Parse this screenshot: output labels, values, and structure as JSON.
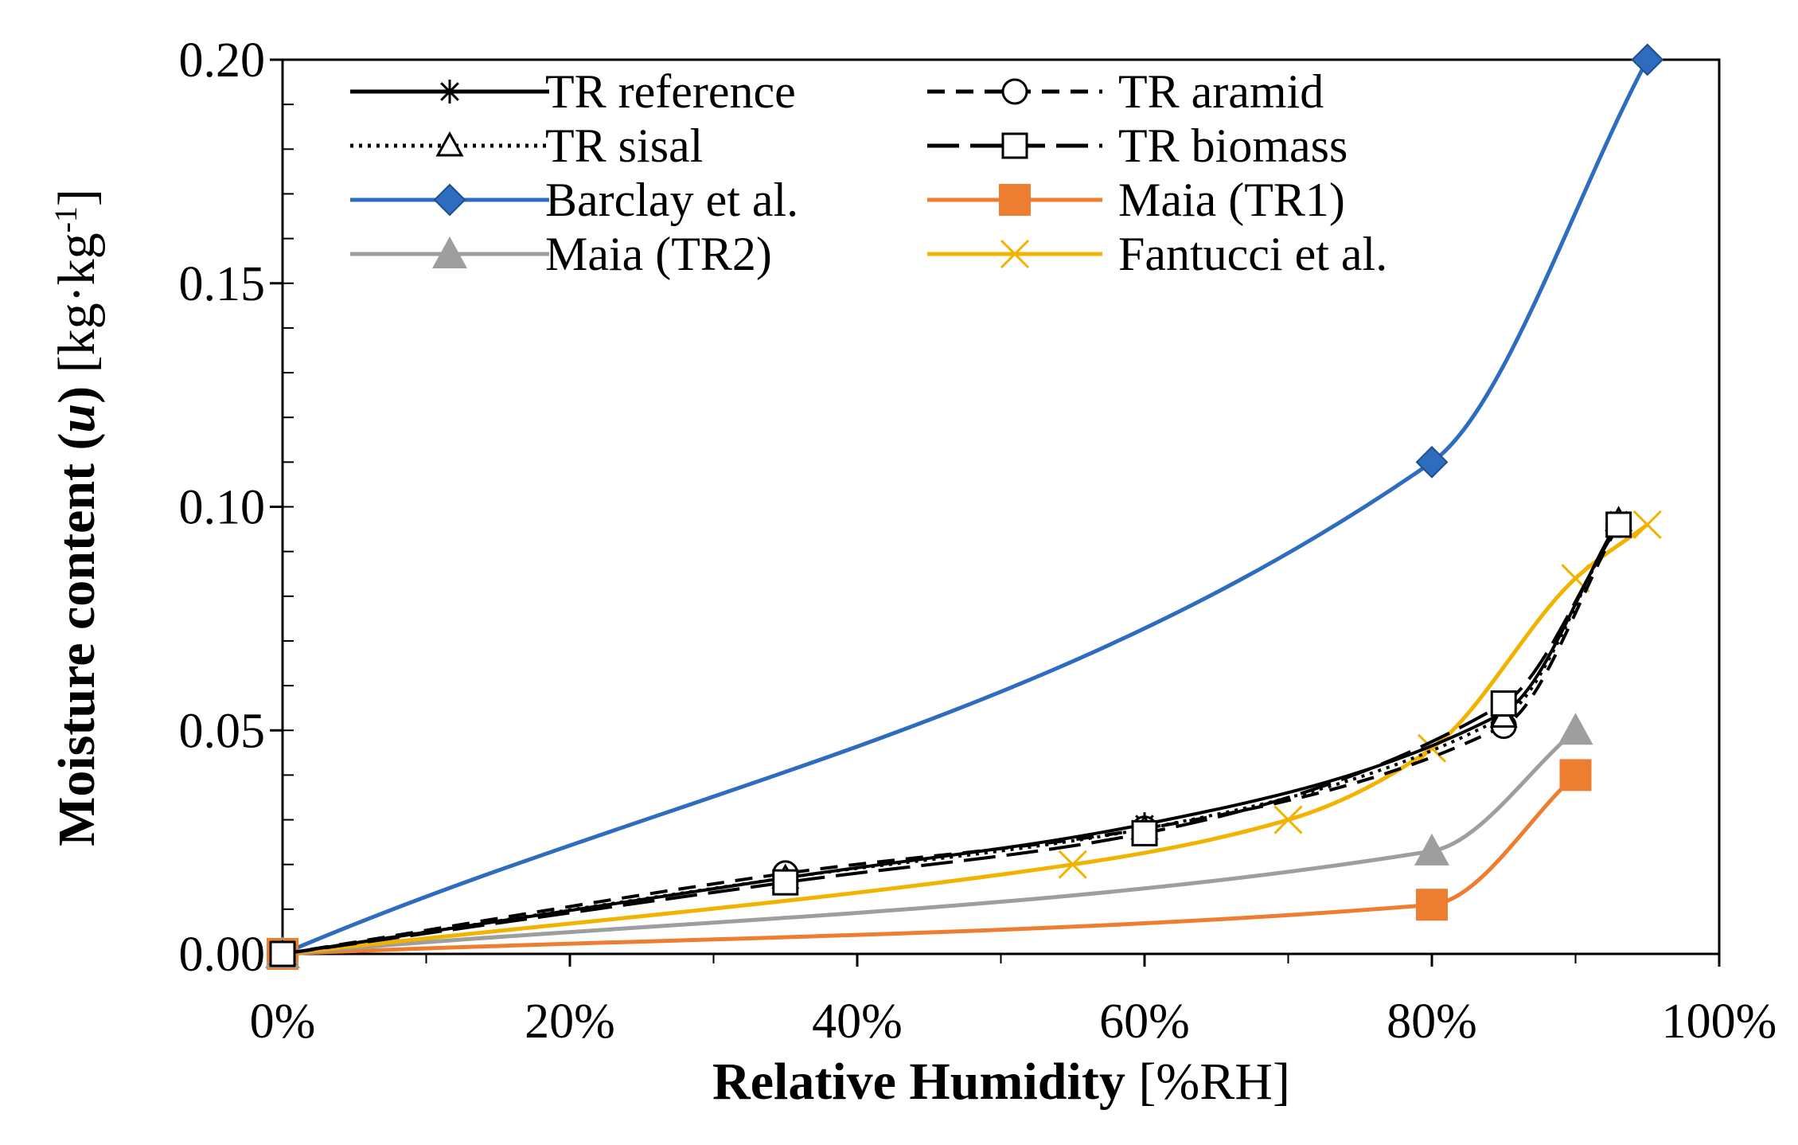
{
  "chart_data": {
    "type": "line",
    "title": "",
    "xlabel": {
      "bold": "Relative Humidity",
      "normal": " [%RH]"
    },
    "ylabel": {
      "bold_part": "Moisture content (",
      "italic_bold": "u",
      "bold_close": ")",
      "unit": " [kg·kg",
      "exp": "-1",
      "unit_close": "]"
    },
    "xlim": [
      0,
      100
    ],
    "ylim": [
      0,
      0.2
    ],
    "x_ticks": [
      0,
      20,
      40,
      60,
      80,
      100
    ],
    "x_tick_labels": [
      "0%",
      "20%",
      "40%",
      "60%",
      "80%",
      "100%"
    ],
    "y_ticks": [
      0,
      0.05,
      0.1,
      0.15,
      0.2
    ],
    "y_tick_labels": [
      "0.00",
      "0.05",
      "0.10",
      "0.15",
      "0.20"
    ],
    "grid": false,
    "legend_position": "top-left",
    "series": [
      {
        "name": "TR reference",
        "color": "#000000",
        "dash": "solid",
        "marker": "asterisk",
        "x": [
          0,
          35,
          60,
          85,
          93
        ],
        "y": [
          0,
          0.017,
          0.029,
          0.054,
          0.097
        ]
      },
      {
        "name": "TR aramid",
        "color": "#000000",
        "dash": "dashed",
        "marker": "circle",
        "x": [
          0,
          35,
          60,
          85,
          93
        ],
        "y": [
          0,
          0.018,
          0.028,
          0.051,
          0.096
        ]
      },
      {
        "name": "TR sisal",
        "color": "#000000",
        "dash": "dotted",
        "marker": "triangle",
        "x": [
          0,
          35,
          60,
          85,
          93
        ],
        "y": [
          0,
          0.017,
          0.028,
          0.053,
          0.097
        ]
      },
      {
        "name": "TR biomass",
        "color": "#000000",
        "dash": "longdash",
        "marker": "square",
        "x": [
          0,
          35,
          60,
          85,
          93
        ],
        "y": [
          0,
          0.016,
          0.027,
          0.056,
          0.096
        ]
      },
      {
        "name": "Barclay et al.",
        "color": "#2e6cc0",
        "dash": "solid",
        "marker": "diamond",
        "x": [
          0,
          80,
          95
        ],
        "y": [
          0,
          0.11,
          0.2
        ]
      },
      {
        "name": "Maia (TR1)",
        "color": "#ed7d31",
        "dash": "solid",
        "marker": "filled-square",
        "x": [
          0,
          80,
          90
        ],
        "y": [
          0,
          0.011,
          0.04
        ]
      },
      {
        "name": "Maia (TR2)",
        "color": "#9e9e9e",
        "dash": "solid",
        "marker": "filled-triangle",
        "x": [
          0,
          80,
          90
        ],
        "y": [
          0,
          0.023,
          0.05
        ]
      },
      {
        "name": "Fantucci et al.",
        "color": "#f2b200",
        "dash": "solid",
        "marker": "x",
        "x": [
          0,
          55,
          70,
          80,
          90,
          95
        ],
        "y": [
          0,
          0.02,
          0.03,
          0.046,
          0.084,
          0.096
        ]
      }
    ]
  }
}
